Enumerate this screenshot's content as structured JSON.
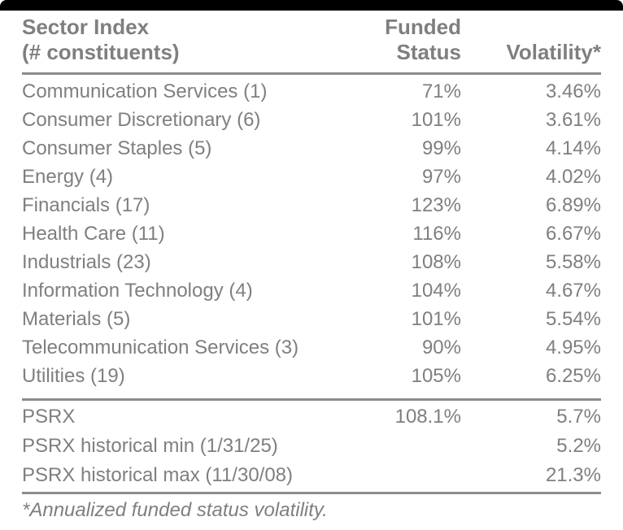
{
  "colors": {
    "text_gray": "#7f7f7f",
    "rule_gray": "#8c8c8c",
    "top_bar": "#000000",
    "background": "#ffffff"
  },
  "table": {
    "header": {
      "sector_line1": "Sector Index",
      "sector_line2": "(# constituents)",
      "funded_line1": "Funded",
      "funded_line2": "Status",
      "volatility": "Volatility*"
    },
    "rows": [
      {
        "sector": "Communication Services (1)",
        "funded": "71%",
        "vol": "3.46%"
      },
      {
        "sector": "Consumer Discretionary (6)",
        "funded": "101%",
        "vol": "3.61%"
      },
      {
        "sector": "Consumer Staples (5)",
        "funded": "99%",
        "vol": "4.14%"
      },
      {
        "sector": "Energy (4)",
        "funded": "97%",
        "vol": "4.02%"
      },
      {
        "sector": "Financials (17)",
        "funded": "123%",
        "vol": "6.89%"
      },
      {
        "sector": "Health Care (11)",
        "funded": "116%",
        "vol": "6.67%"
      },
      {
        "sector": "Industrials (23)",
        "funded": "108%",
        "vol": "5.58%"
      },
      {
        "sector": "Information Technology (4)",
        "funded": "104%",
        "vol": "4.67%"
      },
      {
        "sector": "Materials (5)",
        "funded": "101%",
        "vol": "5.54%"
      },
      {
        "sector": "Telecommunication Services (3)",
        "funded": "90%",
        "vol": "4.95%"
      },
      {
        "sector": "Utilities (19)",
        "funded": "105%",
        "vol": "6.25%"
      }
    ],
    "summary_rows": [
      {
        "sector": "PSRX",
        "funded": "108.1%",
        "vol": "5.7%"
      },
      {
        "sector": "PSRX historical min (1/31/25)",
        "funded": "",
        "vol": "5.2%"
      },
      {
        "sector": "PSRX historical max (11/30/08)",
        "funded": "",
        "vol": "21.3%"
      }
    ],
    "footnote": "*Annualized funded status volatility."
  }
}
